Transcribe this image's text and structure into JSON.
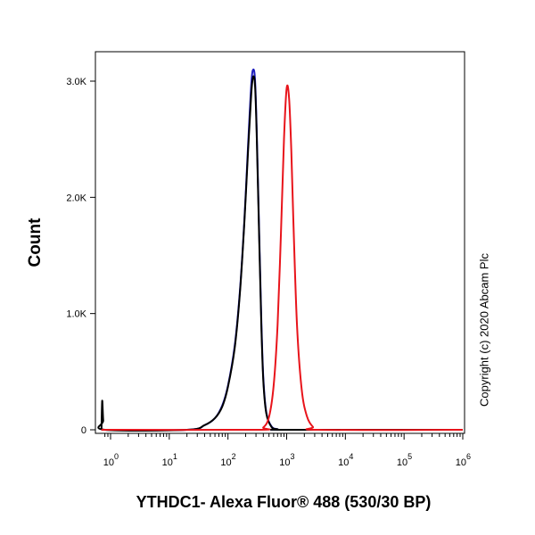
{
  "chart_data": {
    "type": "line",
    "title": "",
    "xlabel": "YTHDC1- Alexa Fluor® 488 (530/30 BP)",
    "ylabel": "Count",
    "x_scale": "log",
    "xlim": [
      0.7,
      1000000
    ],
    "ylim": [
      0,
      3300
    ],
    "grid": false,
    "legend": "none",
    "x_ticks": [
      {
        "base": "10",
        "exp": "0",
        "value": 1
      },
      {
        "base": "10",
        "exp": "1",
        "value": 10
      },
      {
        "base": "10",
        "exp": "2",
        "value": 100
      },
      {
        "base": "10",
        "exp": "3",
        "value": 1000
      },
      {
        "base": "10",
        "exp": "4",
        "value": 10000
      },
      {
        "base": "10",
        "exp": "5",
        "value": 100000
      },
      {
        "base": "10",
        "exp": "6",
        "value": 1000000
      }
    ],
    "y_ticks": [
      {
        "label": "0",
        "value": 0
      },
      {
        "label": "1.0K",
        "value": 1000
      },
      {
        "label": "2.0K",
        "value": 2000
      },
      {
        "label": "3.0K",
        "value": 3000
      }
    ],
    "series": [
      {
        "color": "#1f1fbf",
        "x": [
          0.7,
          20,
          40,
          60,
          80,
          100,
          130,
          160,
          190,
          220,
          250,
          270,
          290,
          310,
          340,
          370,
          400,
          450,
          550,
          700,
          1000,
          1000000
        ],
        "y": [
          0,
          0,
          40,
          100,
          210,
          380,
          720,
          1200,
          1800,
          2450,
          2980,
          3100,
          3000,
          2550,
          1700,
          950,
          450,
          150,
          30,
          5,
          0,
          0
        ]
      },
      {
        "color": "#000000",
        "x": [
          0.7,
          0.72,
          0.75,
          0.8,
          20,
          40,
          60,
          80,
          100,
          130,
          160,
          190,
          220,
          250,
          270,
          290,
          310,
          340,
          370,
          400,
          450,
          550,
          700,
          1000,
          1000000
        ],
        "y": [
          0,
          250,
          80,
          0,
          0,
          40,
          100,
          200,
          370,
          700,
          1180,
          1780,
          2400,
          2900,
          3040,
          2950,
          2500,
          1650,
          900,
          420,
          140,
          25,
          5,
          0,
          0
        ]
      },
      {
        "color": "#e8141b",
        "x": [
          0.7,
          300,
          400,
          500,
          600,
          700,
          800,
          900,
          1000,
          1100,
          1200,
          1300,
          1500,
          1800,
          2200,
          2800,
          3500,
          1000000
        ],
        "y": [
          0,
          0,
          20,
          110,
          380,
          900,
          1700,
          2500,
          2940,
          2850,
          2400,
          1800,
          900,
          350,
          120,
          25,
          0,
          0
        ]
      }
    ]
  },
  "copyright": "Copyright (c) 2020 Abcam Plc"
}
